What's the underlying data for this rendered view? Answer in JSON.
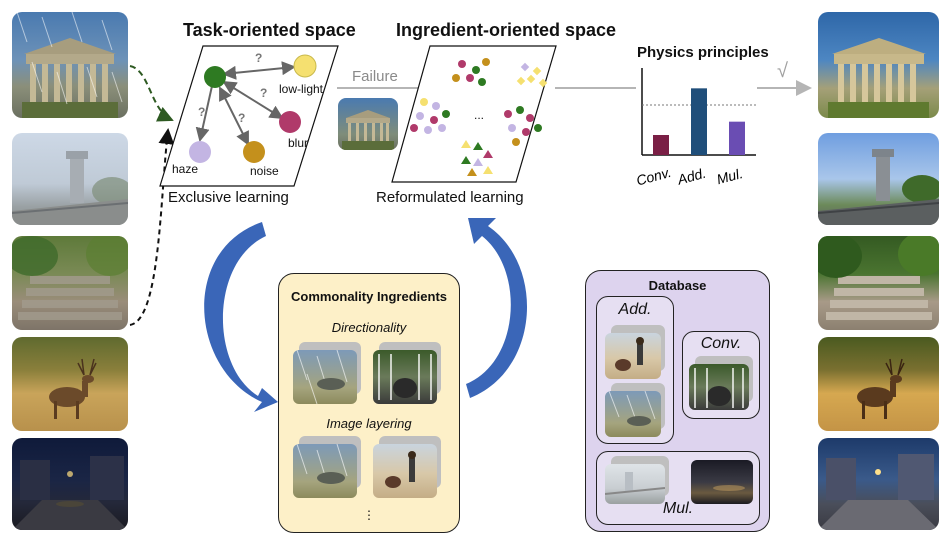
{
  "task_space": {
    "title": "Task-oriented space",
    "caption": "Exclusive learning",
    "nodes": {
      "low_light": "low-light",
      "blur": "blur",
      "haze": "haze",
      "noise": "noise"
    },
    "question_mark": "?"
  },
  "ingredient_space": {
    "title": "Ingredient-oriented space",
    "caption": "Reformulated learning",
    "ellipsis": "..."
  },
  "failure_label": "Failure",
  "physics": {
    "title": "Physics principles",
    "checkmark": "√",
    "categories": [
      "Conv.",
      "Add.",
      "Mul."
    ]
  },
  "chart_data": {
    "type": "bar",
    "title": "Physics principles",
    "categories": [
      "Conv.",
      "Add.",
      "Mul."
    ],
    "values": [
      0.3,
      1.0,
      0.5
    ],
    "colors": [
      "#7a1f45",
      "#1f4e7a",
      "#6a4db3"
    ],
    "ylim": [
      0,
      1.2
    ],
    "reference_line": 0.75
  },
  "commonality": {
    "title": "Commonality Ingredients",
    "items": [
      "Directionality",
      "Image layering"
    ],
    "more": "⋮"
  },
  "database": {
    "title": "Database",
    "groups": {
      "add": "Add.",
      "conv": "Conv.",
      "mul": "Mul."
    }
  },
  "colors": {
    "commonality_bg": "#fdf0c8",
    "database_bg": "#ddd3ee",
    "arrow_blue": "#3a66b8",
    "green_node": "#2e7a22",
    "yellow_node": "#f5e070",
    "blur_node": "#b03a6a",
    "haze_node": "#c3b5e3",
    "noise_node": "#c4901c"
  }
}
